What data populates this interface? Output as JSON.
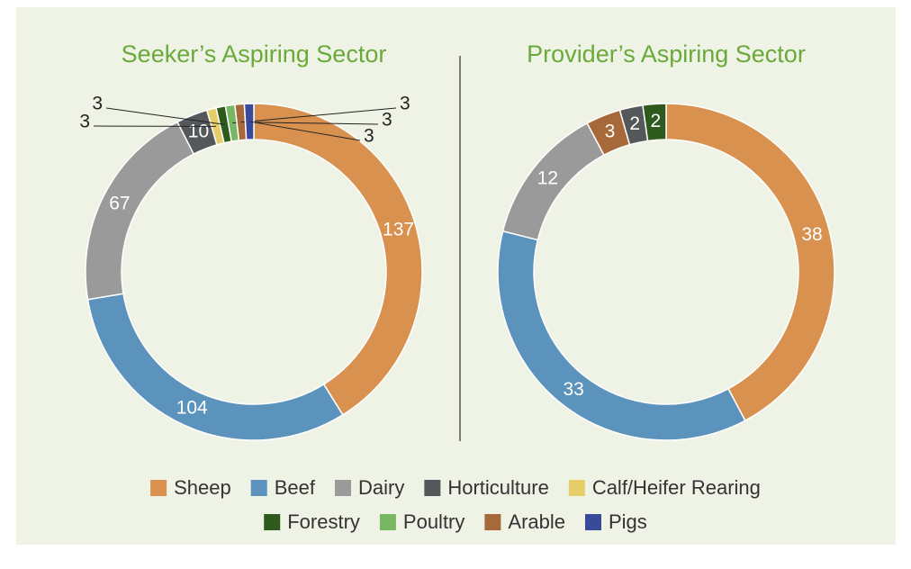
{
  "chart_data": [
    {
      "type": "pie",
      "title": "Seeker’s Aspiring Sector",
      "categories": [
        "Sheep",
        "Beef",
        "Dairy",
        "Horticulture",
        "Calf/Heifer Rearing",
        "Forestry",
        "Poultry",
        "Arable",
        "Pigs"
      ],
      "values": [
        137,
        104,
        67,
        10,
        3,
        3,
        3,
        3,
        3
      ],
      "colors": [
        "#d8914f",
        "#5b93bd",
        "#9a9a9a",
        "#54585a",
        "#e5ce6a",
        "#2e5a1e",
        "#79b862",
        "#a8693a",
        "#3a4a9a"
      ]
    },
    {
      "type": "pie",
      "title": "Provider’s Aspiring Sector",
      "categories": [
        "Sheep",
        "Beef",
        "Dairy",
        "Arable",
        "Horticulture",
        "Forestry"
      ],
      "values": [
        38,
        33,
        12,
        3,
        2,
        2
      ],
      "colors": [
        "#d8914f",
        "#5b93bd",
        "#9a9a9a",
        "#a8693a",
        "#54585a",
        "#2e5a1e"
      ]
    }
  ],
  "legend": [
    {
      "name": "Sheep",
      "color": "#d8914f"
    },
    {
      "name": "Beef",
      "color": "#5b93bd"
    },
    {
      "name": "Dairy",
      "color": "#9a9a9a"
    },
    {
      "name": "Horticulture",
      "color": "#54585a"
    },
    {
      "name": "Calf/Heifer Rearing",
      "color": "#e5ce6a"
    },
    {
      "name": "Forestry",
      "color": "#2e5a1e"
    },
    {
      "name": "Poultry",
      "color": "#79b862"
    },
    {
      "name": "Arable",
      "color": "#a8693a"
    },
    {
      "name": "Pigs",
      "color": "#3a4a9a"
    }
  ]
}
